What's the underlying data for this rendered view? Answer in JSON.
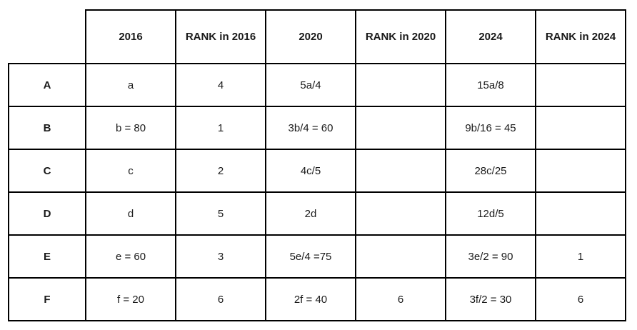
{
  "chart_data": {
    "type": "table",
    "columns": [
      "",
      "2016",
      "RANK in 2016",
      "2020",
      "RANK in 2020",
      "2024",
      "RANK in 2024"
    ],
    "rows": [
      {
        "label": "A",
        "cells": [
          "a",
          "4",
          "5a/4",
          "",
          "15a/8",
          ""
        ]
      },
      {
        "label": "B",
        "cells": [
          "b = 80",
          "1",
          "3b/4 = 60",
          "",
          "9b/16 = 45",
          ""
        ]
      },
      {
        "label": "C",
        "cells": [
          "c",
          "2",
          "4c/5",
          "",
          "28c/25",
          ""
        ]
      },
      {
        "label": "D",
        "cells": [
          "d",
          "5",
          "2d",
          "",
          "12d/5",
          ""
        ]
      },
      {
        "label": "E",
        "cells": [
          "e = 60",
          "3",
          "5e/4 =75",
          "",
          "3e/2 = 90",
          "1"
        ]
      },
      {
        "label": "F",
        "cells": [
          "f = 20",
          "6",
          "2f = 40",
          "6",
          "3f/2 = 30",
          "6"
        ]
      }
    ],
    "layout": {
      "grid": true,
      "border_style": "solid",
      "header_bold": true,
      "corner_cell_borderless": true
    }
  },
  "colors": {
    "border": "#000000",
    "text": "#1a1a1a",
    "background": "#ffffff"
  }
}
